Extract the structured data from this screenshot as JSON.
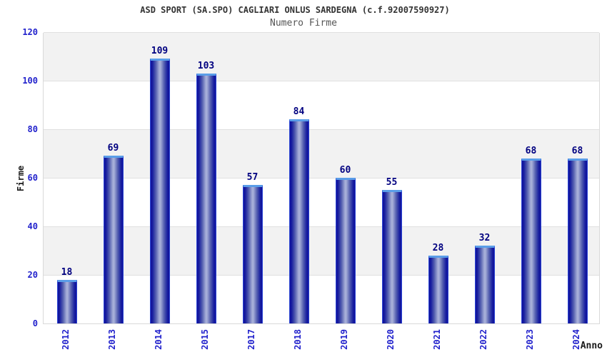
{
  "chart_data": {
    "type": "bar",
    "title": "ASD SPORT (SA.SPO) CAGLIARI ONLUS SARDEGNA (c.f.92007590927)",
    "subtitle": "Numero Firme",
    "xlabel": "Anno",
    "ylabel": "Firme",
    "categories": [
      "2012",
      "2013",
      "2014",
      "2015",
      "2017",
      "2018",
      "2019",
      "2020",
      "2021",
      "2022",
      "2023",
      "2024"
    ],
    "values": [
      18,
      69,
      109,
      103,
      57,
      84,
      60,
      55,
      28,
      32,
      68,
      68
    ],
    "ylim": [
      0,
      120
    ],
    "yticks": [
      0,
      20,
      40,
      60,
      80,
      100,
      120
    ],
    "grid": true,
    "legend": false,
    "band_pattern": "alternating horizontal bands every 20 units, gray on 20-40, 60-80, 100-120"
  },
  "colors": {
    "background": "#ffffff",
    "title": "#333333",
    "subtitle": "#555555",
    "tick_label": "#2222cc",
    "value_label": "#000080",
    "axis_label": "#1a1a1a",
    "band_gray": "#f2f2f2",
    "gridline": "#e0e0e0",
    "plot_border": "#d9d9d9",
    "bar_dark": "#10109b",
    "bar_light": "#a6aed8",
    "bar_cap": "#5a9de8",
    "bar_border": "#2b46d4"
  }
}
